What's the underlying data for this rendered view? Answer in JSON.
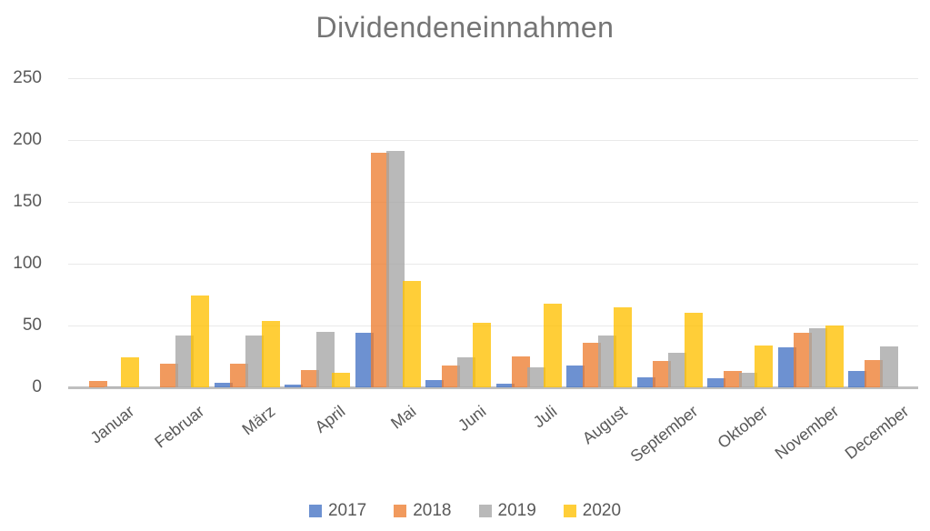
{
  "title": "Dividendeneinnahmen",
  "chart_data": {
    "type": "bar",
    "title": "Dividendeneinnahmen",
    "categories": [
      "Januar",
      "Februar",
      "März",
      "April",
      "Mai",
      "Juni",
      "Juli",
      "August",
      "September",
      "Oktober",
      "November",
      "December"
    ],
    "series": [
      {
        "name": "2017",
        "color": "#4472C4",
        "values": [
          0,
          0,
          4,
          2,
          44,
          6,
          3,
          18,
          8,
          7,
          32,
          13
        ]
      },
      {
        "name": "2018",
        "color": "#ED7D31",
        "values": [
          5,
          19,
          19,
          14,
          190,
          18,
          25,
          36,
          21,
          13,
          44,
          22
        ]
      },
      {
        "name": "2019",
        "color": "#A5A5A5",
        "values": [
          1,
          42,
          42,
          45,
          191,
          24,
          16,
          42,
          28,
          12,
          48,
          33
        ]
      },
      {
        "name": "2020",
        "color": "#FFC000",
        "values": [
          24,
          74,
          54,
          12,
          86,
          52,
          68,
          65,
          60,
          34,
          50,
          0
        ]
      }
    ],
    "y_ticks": [
      0,
      50,
      100,
      150,
      200,
      250
    ],
    "ylim": [
      0,
      250
    ],
    "xlabel": "",
    "ylabel": "",
    "grid": true,
    "legend_position": "bottom",
    "bar_opacity": 0.78,
    "colors": {
      "title_text": "#757575",
      "axis_text": "#595959",
      "gridline": "#e9e9e9",
      "axis_line": "#bfbfbf",
      "background": "#ffffff"
    }
  }
}
